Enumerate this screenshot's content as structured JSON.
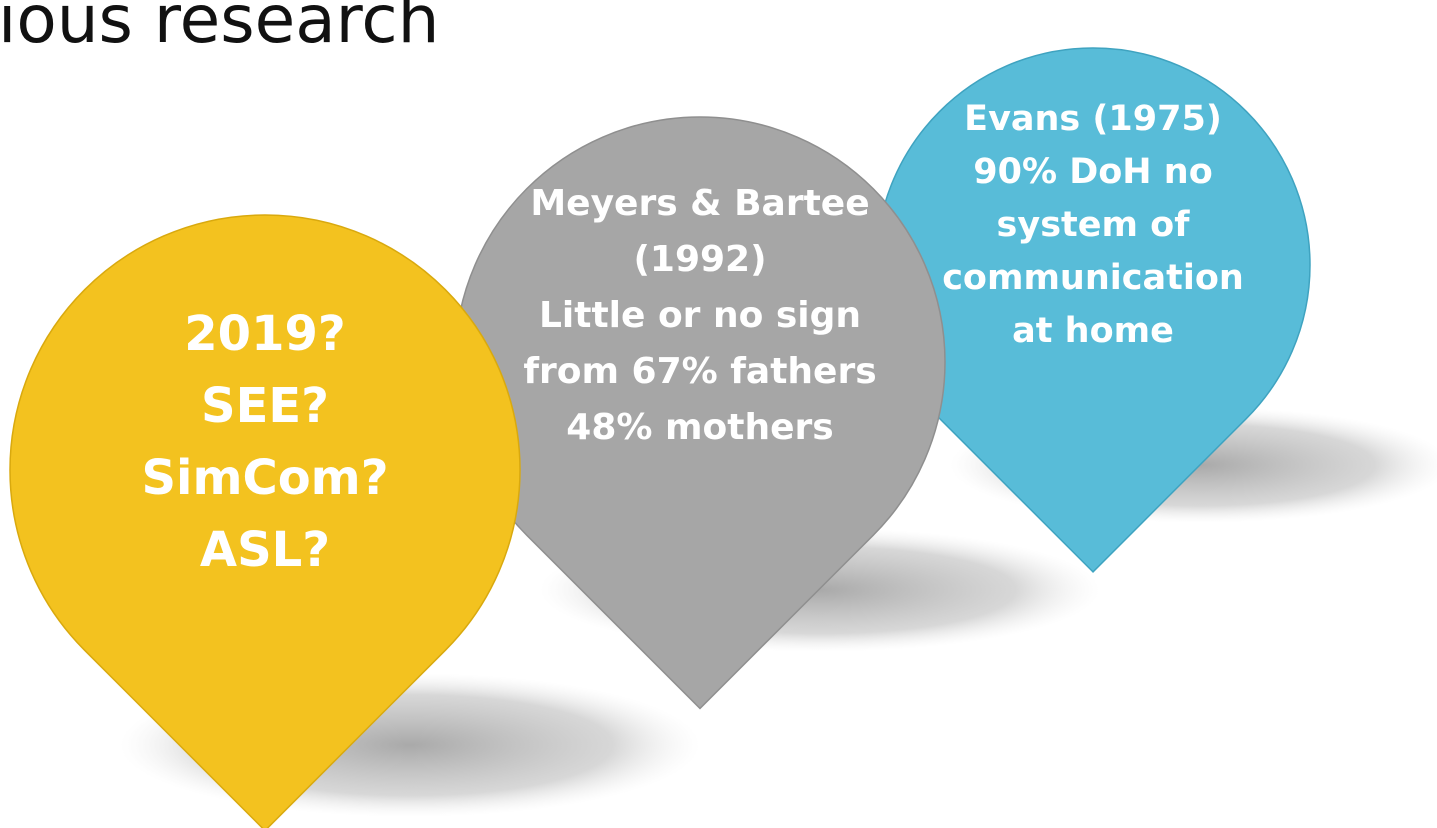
{
  "title": "ious research",
  "pins": [
    {
      "lines": [
        "2019?",
        "SEE?",
        "SimCom?",
        "ASL?"
      ]
    },
    {
      "lines": [
        "Meyers & Bartee",
        "(1992)",
        "Little or no sign",
        "from 67% fathers",
        "48% mothers"
      ]
    },
    {
      "lines": [
        "Evans (1975)",
        "90% DoH no",
        "system of",
        "communication",
        "at home"
      ]
    }
  ]
}
